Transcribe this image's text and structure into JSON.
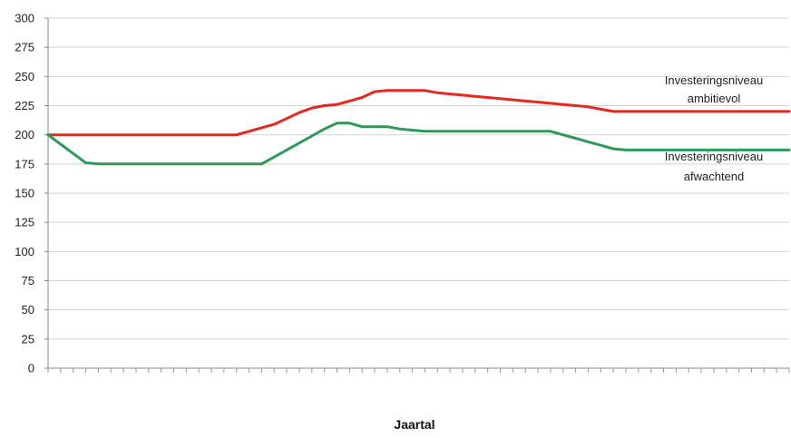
{
  "chart_data": {
    "type": "line",
    "title": "",
    "xlabel": "Jaartal",
    "ylabel": "",
    "ylim": [
      0,
      300
    ],
    "yticks": [
      0,
      25,
      50,
      75,
      100,
      125,
      150,
      175,
      200,
      225,
      250,
      275,
      300
    ],
    "x_count": 60,
    "grid": true,
    "series": [
      {
        "label_lines": [
          "Investeringsniveau",
          "ambitievol"
        ],
        "color": "#e8281e",
        "values": [
          200,
          200,
          200,
          200,
          200,
          200,
          200,
          200,
          200,
          200,
          200,
          200,
          200,
          200,
          200,
          200,
          203,
          206,
          209,
          214,
          219,
          223,
          225,
          226,
          229,
          232,
          237,
          238,
          238,
          238,
          238,
          236,
          235,
          234,
          233,
          232,
          231,
          230,
          229,
          228,
          227,
          226,
          225,
          224,
          222,
          220,
          220,
          220,
          220,
          220,
          220,
          220,
          220,
          220,
          220,
          220,
          220,
          220,
          220,
          220
        ]
      },
      {
        "label_lines": [
          "Investeringsniveau",
          "afwachtend"
        ],
        "color": "#2e9a5a",
        "values": [
          200,
          192,
          184,
          176,
          175,
          175,
          175,
          175,
          175,
          175,
          175,
          175,
          175,
          175,
          175,
          175,
          175,
          175,
          181,
          187,
          193,
          199,
          205,
          210,
          210,
          207,
          207,
          207,
          205,
          204,
          203,
          203,
          203,
          203,
          203,
          203,
          203,
          203,
          203,
          203,
          203,
          200,
          197,
          194,
          191,
          188,
          187,
          187,
          187,
          187,
          187,
          187,
          187,
          187,
          187,
          187,
          187,
          187,
          187,
          187
        ]
      }
    ]
  }
}
